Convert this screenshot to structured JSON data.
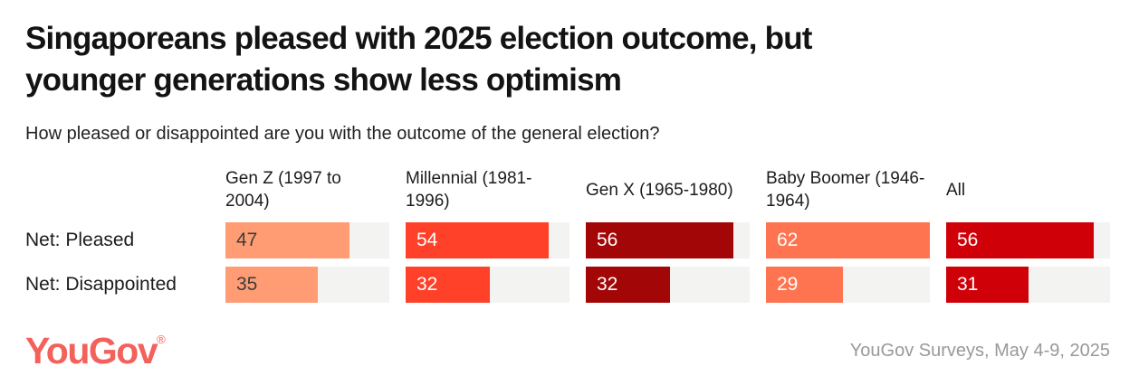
{
  "title_lines": [
    "Singaporeans pleased with 2025 election outcome, but",
    "younger generations show less optimism"
  ],
  "subtitle": "How pleased or disappointed are you with the outcome of the general election?",
  "chart_data": {
    "type": "bar",
    "orientation": "horizontal",
    "max_scale": 62,
    "track_color": "#F3F3F2",
    "groups": [
      "Gen Z (1997 to 2004)",
      "Millennial (1981-1996)",
      "Gen X (1965-1980)",
      "Baby Boomer (1946-1964)",
      "All"
    ],
    "group_colors": [
      "#FF9C73",
      "#FF4129",
      "#A30606",
      "#FF7450",
      "#D00009"
    ],
    "value_text_colors": [
      "#3D3D3D",
      "#FFFFFF",
      "#FFFFFF",
      "#FFFFFF",
      "#FFFFFF"
    ],
    "rows": [
      {
        "label": "Net: Pleased",
        "values": [
          47,
          54,
          56,
          62,
          56
        ]
      },
      {
        "label": "Net: Disappointed",
        "values": [
          35,
          32,
          32,
          29,
          31
        ]
      }
    ]
  },
  "footer": {
    "logo_text": "YouGov",
    "logo_reg": "®",
    "logo_color": "#F4615B",
    "source": "YouGov Surveys, May 4-9, 2025"
  }
}
